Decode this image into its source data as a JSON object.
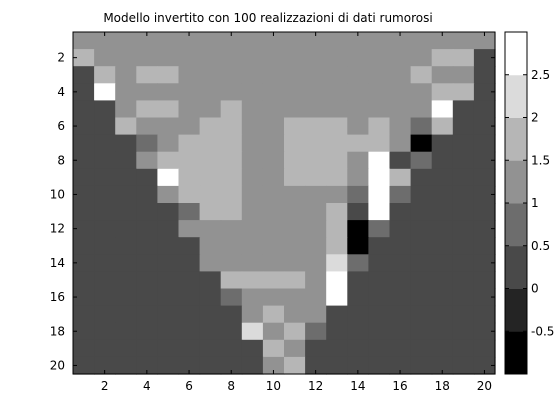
{
  "chart_data": {
    "type": "heatmap",
    "title": "Modello invertito con 100 realizzazioni di dati rumorosi",
    "xlabel": "",
    "ylabel": "",
    "x_range": [
      1,
      20
    ],
    "y_range": [
      1,
      20
    ],
    "x_ticks": [
      2,
      4,
      6,
      8,
      10,
      12,
      14,
      16,
      18,
      20
    ],
    "y_ticks": [
      2,
      4,
      6,
      8,
      10,
      12,
      14,
      16,
      18,
      20
    ],
    "colorbar": {
      "colormap": "gray (8 levels)",
      "range": [
        -1.0,
        3.0
      ],
      "ticks": [
        -0.5,
        0,
        0.5,
        1,
        1.5,
        2,
        2.5
      ]
    },
    "rows": [
      [
        1,
        1,
        1,
        1,
        1,
        1,
        1,
        1,
        1,
        1,
        1,
        1,
        1,
        1,
        1,
        1,
        1,
        1,
        1,
        1
      ],
      [
        1.5,
        1,
        1,
        1,
        1,
        1,
        1,
        1,
        1,
        1,
        1,
        1,
        1,
        1,
        1,
        1,
        1,
        1.5,
        1.5,
        0
      ],
      [
        0,
        1.5,
        1,
        1.5,
        1.5,
        1,
        1,
        1,
        1,
        1,
        1,
        1,
        1,
        1,
        1,
        1,
        1.5,
        1,
        1,
        0
      ],
      [
        0,
        2.5,
        1,
        1,
        1,
        1,
        1,
        1,
        1,
        1,
        1,
        1,
        1,
        1,
        1,
        1,
        1,
        1.5,
        1.5,
        0
      ],
      [
        0,
        0,
        1,
        1.5,
        1.5,
        1,
        1,
        1.5,
        1,
        1,
        1,
        1,
        1,
        1,
        1,
        1,
        1,
        3,
        0,
        0
      ],
      [
        0,
        0,
        1.5,
        1,
        1,
        1,
        1.5,
        1.5,
        1,
        1,
        1.5,
        1.5,
        1.5,
        1,
        1.5,
        1,
        0.5,
        1.5,
        0,
        0
      ],
      [
        0,
        0,
        0,
        0.5,
        1,
        1.5,
        1.5,
        1.5,
        1,
        1,
        1.5,
        1.5,
        1.5,
        1.5,
        1.5,
        1,
        -1,
        0,
        0,
        0
      ],
      [
        0,
        0,
        0,
        1,
        1.5,
        1.5,
        1.5,
        1.5,
        1,
        1,
        1.5,
        1.5,
        1.5,
        1,
        2.5,
        0,
        0.5,
        0,
        0,
        0
      ],
      [
        0,
        0,
        0,
        0,
        2.5,
        1.5,
        1.5,
        1.5,
        1,
        1,
        1.5,
        1.5,
        1.5,
        1,
        3,
        1.5,
        0,
        0,
        0,
        0
      ],
      [
        0,
        0,
        0,
        0,
        1,
        1.5,
        1.5,
        1.5,
        1,
        1,
        1,
        1,
        1,
        0.5,
        3,
        0.5,
        0,
        0,
        0,
        0
      ],
      [
        0,
        0,
        0,
        0,
        0,
        0.5,
        1.5,
        1.5,
        1,
        1,
        1,
        1,
        1.5,
        0,
        3,
        0,
        0,
        0,
        0,
        0
      ],
      [
        0,
        0,
        0,
        0,
        0,
        1,
        1,
        1,
        1,
        1,
        1,
        1,
        1.5,
        -1,
        0.5,
        0,
        0,
        0,
        0,
        0
      ],
      [
        0,
        0,
        0,
        0,
        0,
        0,
        1,
        1,
        1,
        1,
        1,
        1,
        1.5,
        -1,
        0,
        0,
        0,
        0,
        0,
        0
      ],
      [
        0,
        0,
        0,
        0,
        0,
        0,
        1,
        1,
        1,
        1,
        1,
        1,
        2,
        0.5,
        0,
        0,
        0,
        0,
        0,
        0
      ],
      [
        0,
        0,
        0,
        0,
        0,
        0,
        0,
        1.5,
        1.5,
        1.5,
        1.5,
        1,
        2.5,
        0,
        0,
        0,
        0,
        0,
        0,
        0
      ],
      [
        0,
        0,
        0,
        0,
        0,
        0,
        0,
        0.5,
        1,
        1,
        1,
        1,
        3,
        0,
        0,
        0,
        0,
        0,
        0,
        0
      ],
      [
        0,
        0,
        0,
        0,
        0,
        0,
        0,
        0,
        1,
        1.5,
        1,
        1,
        0,
        0,
        0,
        0,
        0,
        0,
        0,
        0
      ],
      [
        0,
        0,
        0,
        0,
        0,
        0,
        0,
        0,
        2,
        1,
        1.5,
        0.5,
        0,
        0,
        0,
        0,
        0,
        0,
        0,
        0
      ],
      [
        0,
        0,
        0,
        0,
        0,
        0,
        0,
        0,
        0,
        1.5,
        1,
        0,
        0,
        0,
        0,
        0,
        0,
        0,
        0,
        0
      ],
      [
        0,
        0,
        0,
        0,
        0,
        0,
        0,
        0,
        0,
        1,
        1.5,
        0,
        0,
        0,
        0,
        0,
        0,
        0,
        0,
        0
      ]
    ]
  }
}
